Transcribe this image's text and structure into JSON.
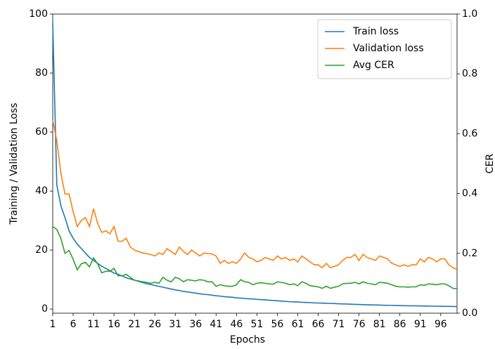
{
  "chart_data": {
    "type": "line",
    "xlabel": "Epochs",
    "ylabel": "Training / Validation Loss",
    "y2label": "CER",
    "x": [
      1,
      2,
      3,
      4,
      5,
      6,
      7,
      8,
      9,
      10,
      11,
      12,
      13,
      14,
      15,
      16,
      17,
      18,
      19,
      20,
      21,
      22,
      23,
      24,
      25,
      26,
      27,
      28,
      29,
      30,
      31,
      32,
      33,
      34,
      35,
      36,
      37,
      38,
      39,
      40,
      41,
      42,
      43,
      44,
      45,
      46,
      47,
      48,
      49,
      50,
      51,
      52,
      53,
      54,
      55,
      56,
      57,
      58,
      59,
      60,
      61,
      62,
      63,
      64,
      65,
      66,
      67,
      68,
      69,
      70,
      71,
      72,
      73,
      74,
      75,
      76,
      77,
      78,
      79,
      80,
      81,
      82,
      83,
      84,
      85,
      86,
      87,
      88,
      89,
      90,
      91,
      92,
      93,
      94,
      95,
      96,
      97,
      98,
      99,
      100
    ],
    "series": [
      {
        "name": "Train loss",
        "color": "#1f77b4",
        "axis": "y",
        "values": [
          97,
          42,
          35,
          31,
          26.5,
          24,
          22,
          20.5,
          19,
          17.5,
          16.5,
          15.5,
          14.5,
          13.8,
          13,
          12.2,
          11.8,
          11.2,
          10.6,
          10.2,
          9.8,
          9.4,
          9.0,
          8.6,
          8.3,
          8.0,
          7.7,
          7.4,
          7.1,
          6.8,
          6.5,
          6.3,
          6.0,
          5.8,
          5.6,
          5.4,
          5.2,
          5.0,
          4.9,
          4.7,
          4.5,
          4.4,
          4.2,
          4.1,
          4.0,
          3.8,
          3.7,
          3.6,
          3.5,
          3.4,
          3.3,
          3.2,
          3.1,
          3.0,
          2.9,
          2.8,
          2.7,
          2.6,
          2.5,
          2.45,
          2.4,
          2.3,
          2.25,
          2.2,
          2.1,
          2.05,
          2.0,
          1.95,
          1.9,
          1.85,
          1.8,
          1.75,
          1.7,
          1.65,
          1.6,
          1.55,
          1.5,
          1.45,
          1.4,
          1.38,
          1.35,
          1.3,
          1.28,
          1.25,
          1.2,
          1.18,
          1.15,
          1.12,
          1.1,
          1.08,
          1.05,
          1.02,
          1.0,
          0.98,
          0.95,
          0.93,
          0.9,
          0.9,
          0.88,
          0.85
        ]
      },
      {
        "name": "Validation loss",
        "color": "#ff7f0e",
        "axis": "y",
        "values": [
          64,
          57,
          46,
          39,
          39,
          33,
          28,
          30,
          31,
          28,
          34,
          29,
          26,
          26.5,
          25.5,
          28,
          23,
          23,
          24,
          21,
          20,
          19.5,
          19,
          18.8,
          18.5,
          18,
          19,
          18.5,
          20.5,
          19.5,
          18.5,
          21,
          19.5,
          18.5,
          20,
          19,
          18,
          19,
          18.8,
          18.7,
          18,
          15.5,
          16.5,
          15.5,
          16,
          15.5,
          17,
          19,
          17.5,
          17,
          16,
          16.5,
          17.5,
          17,
          16.5,
          18,
          17,
          17.5,
          16.5,
          17,
          16,
          18,
          17,
          16,
          15,
          15,
          14,
          15.5,
          14,
          14.5,
          15,
          16.5,
          17.5,
          17.5,
          18.5,
          16.5,
          18.5,
          17.5,
          17,
          16.5,
          18,
          17.5,
          17,
          15.5,
          15,
          14.5,
          15,
          14.5,
          15,
          15,
          17,
          16,
          17.5,
          17,
          16,
          17,
          17,
          15,
          14,
          13.5
        ]
      },
      {
        "name": "Avg CER",
        "color": "#2ca02c",
        "axis": "y2",
        "values": [
          0.29,
          0.28,
          0.25,
          0.2,
          0.21,
          0.18,
          0.145,
          0.165,
          0.17,
          0.155,
          0.185,
          0.165,
          0.135,
          0.14,
          0.14,
          0.15,
          0.125,
          0.125,
          0.13,
          0.12,
          0.11,
          0.108,
          0.105,
          0.103,
          0.1,
          0.103,
          0.1,
          0.12,
          0.11,
          0.105,
          0.12,
          0.115,
          0.105,
          0.112,
          0.11,
          0.108,
          0.112,
          0.11,
          0.105,
          0.105,
          0.09,
          0.095,
          0.092,
          0.09,
          0.09,
          0.095,
          0.112,
          0.105,
          0.103,
          0.095,
          0.1,
          0.102,
          0.1,
          0.098,
          0.097,
          0.105,
          0.103,
          0.1,
          0.095,
          0.098,
          0.092,
          0.105,
          0.1,
          0.092,
          0.09,
          0.088,
          0.083,
          0.09,
          0.083,
          0.087,
          0.09,
          0.098,
          0.1,
          0.1,
          0.103,
          0.098,
          0.105,
          0.1,
          0.098,
          0.095,
          0.103,
          0.102,
          0.1,
          0.095,
          0.09,
          0.088,
          0.088,
          0.087,
          0.088,
          0.088,
          0.095,
          0.093,
          0.098,
          0.097,
          0.095,
          0.098,
          0.098,
          0.092,
          0.083,
          0.082
        ]
      }
    ],
    "xlim": [
      1,
      100
    ],
    "xticks": [
      1,
      6,
      11,
      16,
      21,
      26,
      31,
      36,
      41,
      46,
      51,
      56,
      61,
      66,
      71,
      76,
      81,
      86,
      91,
      96
    ],
    "ylim": [
      -1.4,
      100
    ],
    "yticks": [
      0,
      20,
      40,
      60,
      80,
      100
    ],
    "y2lim": [
      0,
      1
    ],
    "y2ticks": [
      {
        "value": 0,
        "label": "0.0"
      },
      {
        "value": 0.2,
        "label": "0.2"
      },
      {
        "value": 0.4,
        "label": "0.4"
      },
      {
        "value": 0.6,
        "label": "0.6"
      },
      {
        "value": 0.8,
        "label": "0.8"
      },
      {
        "value": 1,
        "label": "1.0"
      }
    ],
    "legend": "upper right"
  }
}
